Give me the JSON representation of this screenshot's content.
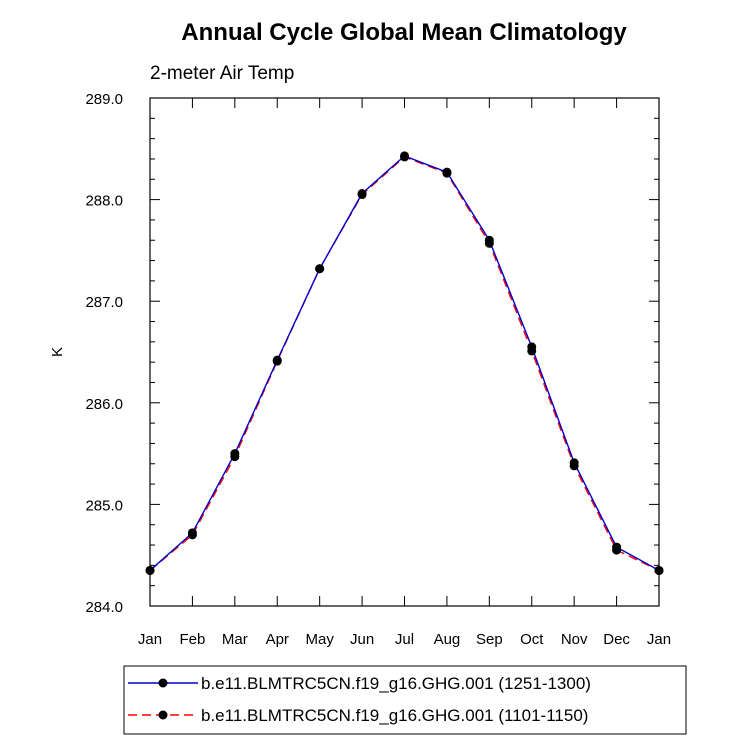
{
  "chart_data": {
    "type": "line",
    "title": "Annual Cycle Global Mean Climatology",
    "subtitle": "2-meter Air Temp",
    "xlabel": "",
    "ylabel": "K",
    "categories": [
      "Jan",
      "Feb",
      "Mar",
      "Apr",
      "May",
      "Jun",
      "Jul",
      "Aug",
      "Sep",
      "Oct",
      "Nov",
      "Dec",
      "Jan"
    ],
    "ylim": [
      284.0,
      289.0
    ],
    "yticks": [
      "284.0",
      "285.0",
      "286.0",
      "287.0",
      "288.0",
      "289.0"
    ],
    "grid": false,
    "legend_position": "bottom",
    "series": [
      {
        "name": "b.e11.BLMTRC5CN.f19_g16.GHG.001 (1251-1300)",
        "color": "#0000cc",
        "line_style": "solid",
        "marker": "filled-circle",
        "values": [
          284.35,
          284.72,
          285.5,
          286.42,
          287.32,
          288.06,
          288.43,
          288.27,
          287.6,
          286.55,
          285.41,
          284.58,
          284.35
        ]
      },
      {
        "name": "b.e11.BLMTRC5CN.f19_g16.GHG.001 (1101-1150)",
        "color": "#ff0000",
        "line_style": "dashed",
        "marker": "filled-circle",
        "values": [
          284.35,
          284.7,
          285.47,
          286.41,
          287.32,
          288.05,
          288.42,
          288.26,
          287.57,
          286.51,
          285.38,
          284.55,
          284.35
        ]
      }
    ]
  }
}
